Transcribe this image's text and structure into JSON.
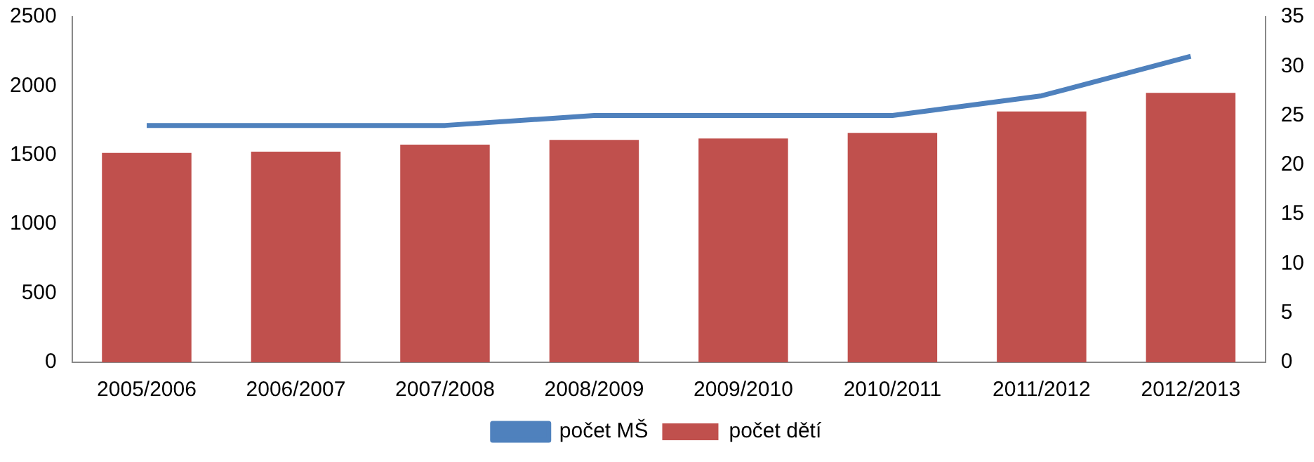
{
  "chart_data": {
    "type": "bar",
    "categories": [
      "2005/2006",
      "2006/2007",
      "2007/2008",
      "2008/2009",
      "2009/2010",
      "2010/2011",
      "2011/2012",
      "2012/2013"
    ],
    "series": [
      {
        "name": "počet dětí",
        "color": "#c0504d",
        "values": [
          1515,
          1525,
          1575,
          1610,
          1620,
          1660,
          1815,
          1950
        ]
      },
      {
        "name": "počet MŠ",
        "color": "#4f81bd",
        "type": "line",
        "axis": "y2",
        "values": [
          24,
          24,
          24,
          25,
          25,
          25,
          27,
          31
        ]
      }
    ],
    "ylim": [
      0,
      2500
    ],
    "yticks": [
      0,
      500,
      1000,
      1500,
      2000,
      2500
    ],
    "y2lim": [
      0,
      35
    ],
    "y2ticks": [
      0,
      5,
      10,
      15,
      20,
      25,
      30,
      35
    ],
    "legend": "bottom",
    "marker": "none"
  }
}
